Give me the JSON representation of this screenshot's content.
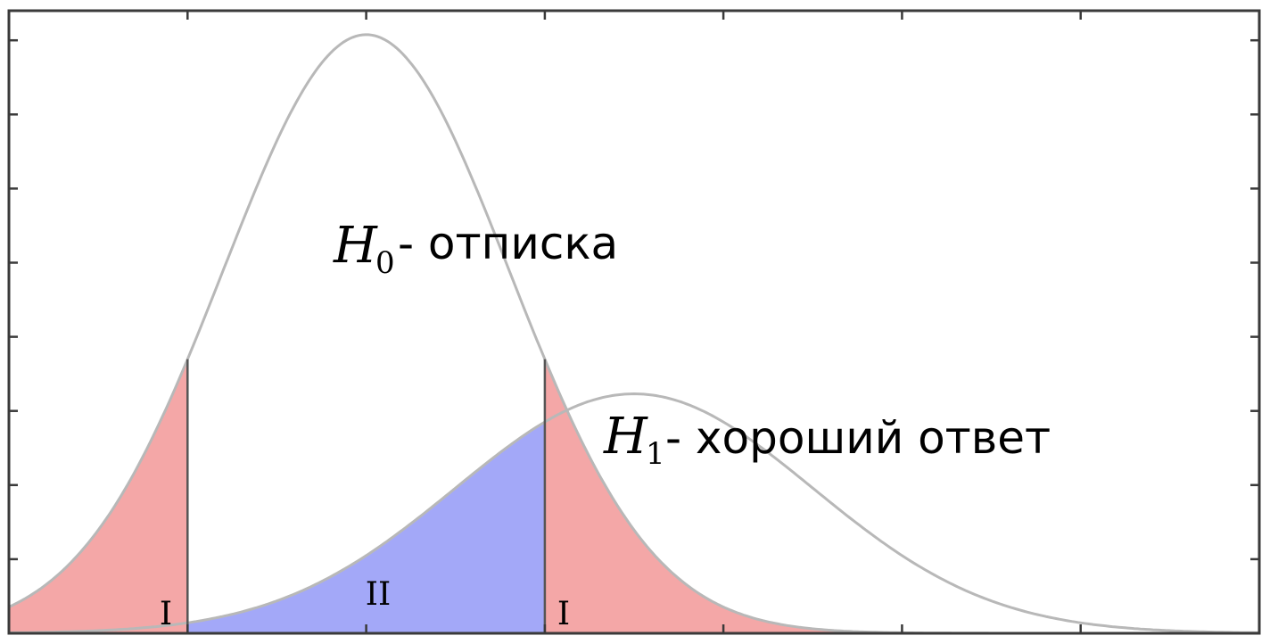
{
  "chart_data": {
    "type": "area",
    "title": "",
    "xlabel": "",
    "ylabel": "",
    "xlim": [
      -2.0,
      5.0
    ],
    "ylim": [
      0,
      0.52
    ],
    "grid": false,
    "curves": [
      {
        "id": "h0",
        "label_main": "H",
        "label_sub": "0",
        "label_text": " - отписка",
        "mean": 0.0,
        "sd": 0.8,
        "amp": 0.5
      },
      {
        "id": "h1",
        "label_main": "H",
        "label_sub": "1",
        "label_text": " - хороший ответ",
        "mean": 1.5,
        "sd": 1.0,
        "amp": 0.2
      }
    ],
    "thresholds": [
      -1.0,
      1.0
    ],
    "regions": [
      {
        "id": "type1-left",
        "curve": "h0",
        "from": -2.0,
        "to": -1.0,
        "label": "I",
        "color": "#f4a7a7"
      },
      {
        "id": "type2",
        "curve": "h1",
        "from": -1.0,
        "to": 1.0,
        "label": "II",
        "color": "#a3a8f8"
      },
      {
        "id": "type1-right",
        "curve": "h0",
        "from": 1.0,
        "to": 5.0,
        "label": "I",
        "color": "#f4a7a7"
      }
    ],
    "colors": {
      "curve": "#b8b8b8",
      "frame": "#3a3a3a"
    }
  }
}
